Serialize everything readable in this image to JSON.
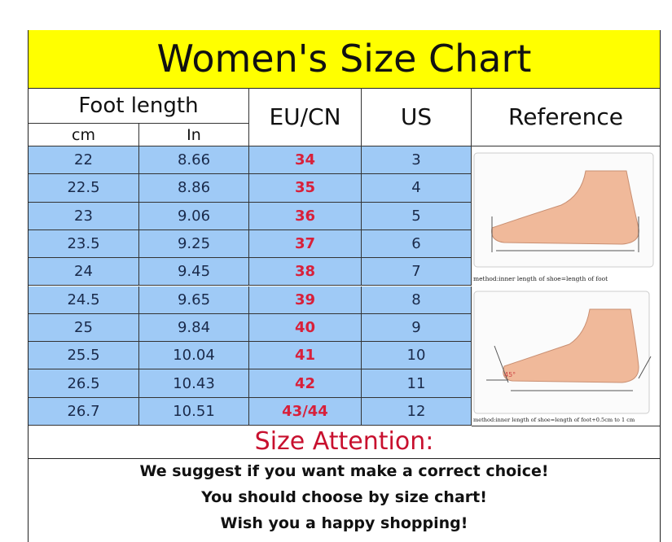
{
  "title": "Women's Size Chart",
  "headers": {
    "foot_length": "Foot length",
    "cm": "cm",
    "in": "In",
    "eu_cn": "EU/CN",
    "us": "US",
    "reference": "Reference"
  },
  "rows": [
    {
      "cm": "22",
      "in": "8.66",
      "eu": "34",
      "us": "3"
    },
    {
      "cm": "22.5",
      "in": "8.86",
      "eu": "35",
      "us": "4"
    },
    {
      "cm": "23",
      "in": "9.06",
      "eu": "36",
      "us": "5"
    },
    {
      "cm": "23.5",
      "in": "9.25",
      "eu": "37",
      "us": "6"
    },
    {
      "cm": "24",
      "in": "9.45",
      "eu": "38",
      "us": "7"
    },
    {
      "cm": "24.5",
      "in": "9.65",
      "eu": "39",
      "us": "8"
    },
    {
      "cm": "25",
      "in": "9.84",
      "eu": "40",
      "us": "9"
    },
    {
      "cm": "25.5",
      "in": "10.04",
      "eu": "41",
      "us": "10"
    },
    {
      "cm": "26.5",
      "in": "10.43",
      "eu": "42",
      "us": "11"
    },
    {
      "cm": "26.7",
      "in": "10.51",
      "eu": "43/44",
      "us": "12"
    }
  ],
  "reference": {
    "caption1": "method:inner length of shoe=length of foot",
    "caption2": "method:inner length of shoe=length of foot+0.5cm to 1 cm",
    "angle": "45°"
  },
  "attention": {
    "title": "Size Attention:",
    "lines": [
      "We suggest if you want make a correct choice!",
      "You should choose by size chart!",
      "Wish you a happy shopping!"
    ]
  },
  "colors": {
    "title_bg": "#ffff00",
    "row_bg": "#9fcaf6",
    "eu_text": "#d8203a",
    "attention_text": "#c8102e"
  }
}
